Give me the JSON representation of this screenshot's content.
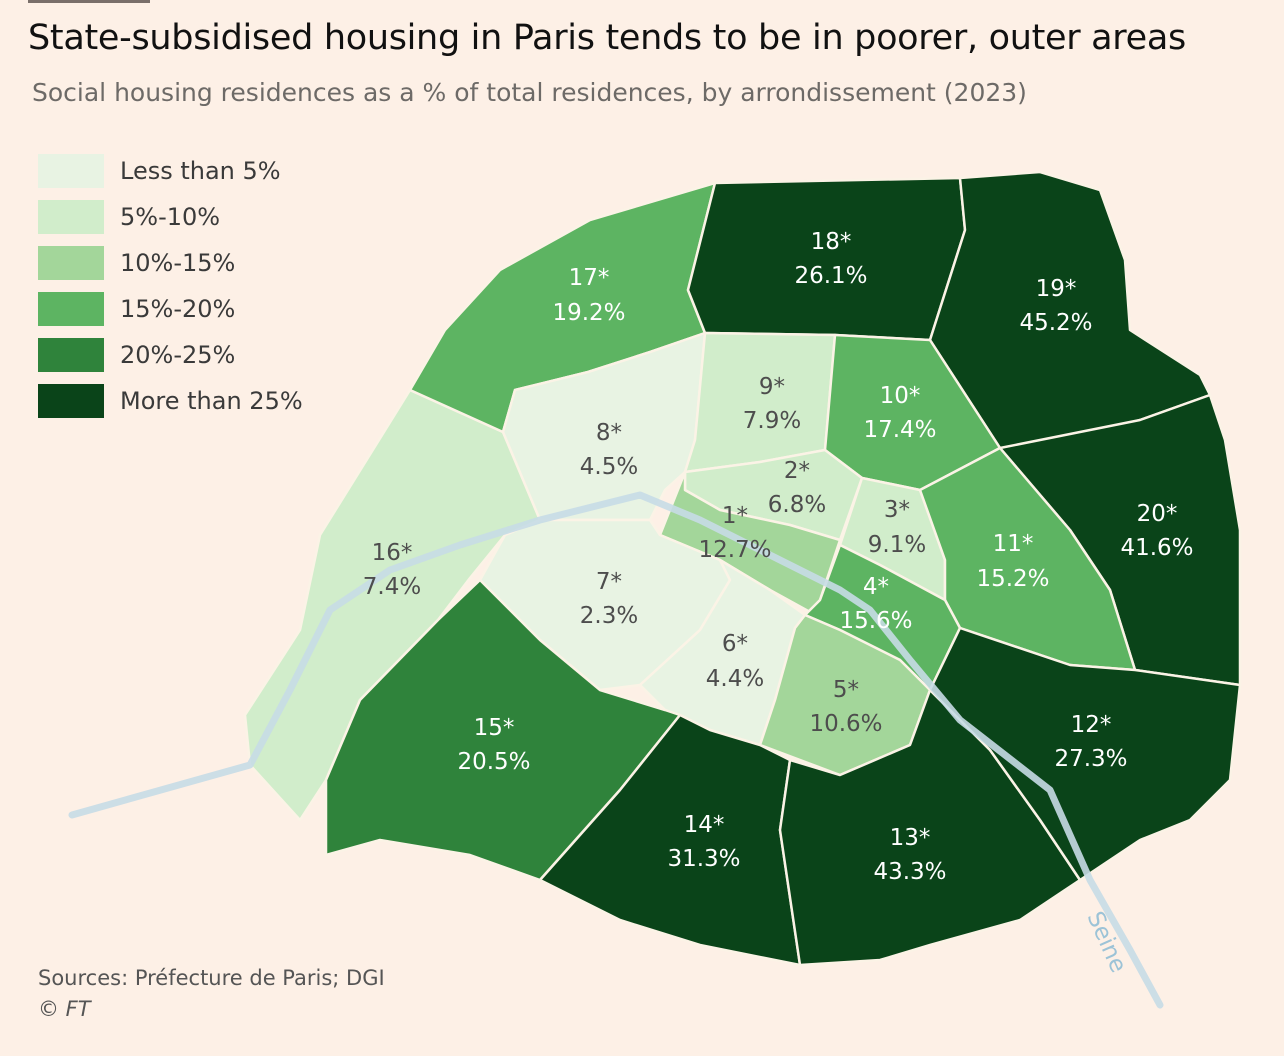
{
  "header": {
    "title": "State-subsidised housing in Paris tends to be in poorer, outer areas",
    "subtitle": "Social housing residences as a % of total residences, by arrondissement (2023)"
  },
  "legend": [
    {
      "label": "Less than 5%",
      "color": "#e8f3e3"
    },
    {
      "label": "5%-10%",
      "color": "#d1edcb"
    },
    {
      "label": "10%-15%",
      "color": "#a3d69a"
    },
    {
      "label": "15%-20%",
      "color": "#5db462"
    },
    {
      "label": "20%-25%",
      "color": "#2f833b"
    },
    {
      "label": "More than 25%",
      "color": "#0a4419"
    }
  ],
  "arrondissements": [
    {
      "id": "1*",
      "value": "12.7%"
    },
    {
      "id": "2*",
      "value": "6.8%"
    },
    {
      "id": "3*",
      "value": "9.1%"
    },
    {
      "id": "4*",
      "value": "15.6%"
    },
    {
      "id": "5*",
      "value": "10.6%"
    },
    {
      "id": "6*",
      "value": "4.4%"
    },
    {
      "id": "7*",
      "value": "2.3%"
    },
    {
      "id": "8*",
      "value": "4.5%"
    },
    {
      "id": "9*",
      "value": "7.9%"
    },
    {
      "id": "10*",
      "value": "17.4%"
    },
    {
      "id": "11*",
      "value": "15.2%"
    },
    {
      "id": "12*",
      "value": "27.3%"
    },
    {
      "id": "13*",
      "value": "43.3%"
    },
    {
      "id": "14*",
      "value": "31.3%"
    },
    {
      "id": "15*",
      "value": "20.5%"
    },
    {
      "id": "16*",
      "value": "7.4%"
    },
    {
      "id": "17*",
      "value": "19.2%"
    },
    {
      "id": "18*",
      "value": "26.1%"
    },
    {
      "id": "19*",
      "value": "45.2%"
    },
    {
      "id": "20*",
      "value": "41.6%"
    }
  ],
  "river": {
    "label": "Seine",
    "color": "#c6dce6"
  },
  "footer": {
    "source": "Sources: Préfecture de Paris; DGI",
    "credit": "© FT"
  }
}
